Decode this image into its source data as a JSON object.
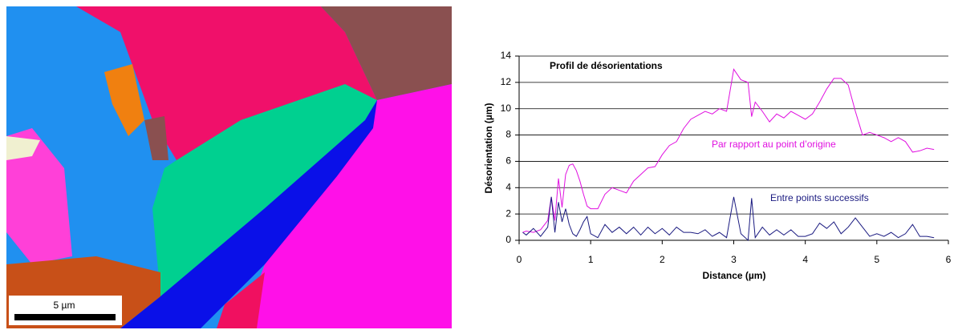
{
  "image": {
    "scale_bar": "5 µm"
  },
  "chart_data": {
    "type": "line",
    "title": "Profil de désorientations",
    "x_label": "Distance (µm)",
    "y_label": "Désorientation (µm)",
    "x": [
      0.05,
      0.1,
      0.2,
      0.3,
      0.4,
      0.45,
      0.5,
      0.55,
      0.6,
      0.65,
      0.7,
      0.75,
      0.8,
      0.85,
      0.9,
      0.95,
      1.0,
      1.1,
      1.2,
      1.3,
      1.4,
      1.5,
      1.6,
      1.7,
      1.8,
      1.9,
      2.0,
      2.1,
      2.2,
      2.3,
      2.4,
      2.5,
      2.6,
      2.7,
      2.8,
      2.9,
      3.0,
      3.1,
      3.2,
      3.25,
      3.3,
      3.4,
      3.5,
      3.6,
      3.7,
      3.8,
      3.9,
      4.0,
      4.1,
      4.2,
      4.3,
      4.4,
      4.5,
      4.6,
      4.7,
      4.8,
      4.9,
      5.0,
      5.1,
      5.2,
      5.3,
      5.4,
      5.5,
      5.6,
      5.7,
      5.8
    ],
    "series": [
      {
        "name": "Par rapport au point d’origine",
        "color": "#e010e0",
        "values": [
          0.6,
          0.7,
          0.6,
          0.8,
          1.5,
          3.3,
          1.5,
          4.7,
          2.5,
          5.0,
          5.7,
          5.8,
          5.3,
          4.5,
          3.5,
          2.6,
          2.4,
          2.4,
          3.5,
          4.0,
          3.8,
          3.6,
          4.5,
          5.0,
          5.5,
          5.6,
          6.5,
          7.2,
          7.5,
          8.5,
          9.2,
          9.5,
          9.8,
          9.6,
          10.0,
          9.8,
          13.0,
          12.2,
          12.0,
          9.4,
          10.5,
          9.8,
          9.0,
          9.6,
          9.3,
          9.8,
          9.5,
          9.2,
          9.6,
          10.5,
          11.5,
          12.3,
          12.3,
          11.8,
          9.8,
          8.0,
          8.2,
          8.0,
          7.8,
          7.5,
          7.8,
          7.5,
          6.7,
          6.8,
          7.0,
          6.9
        ]
      },
      {
        "name": "Entre points successifs",
        "color": "#1a1a80",
        "values": [
          0.6,
          0.4,
          0.9,
          0.3,
          1.0,
          3.3,
          0.6,
          2.9,
          1.4,
          2.4,
          1.2,
          0.5,
          0.3,
          0.8,
          1.4,
          1.8,
          0.5,
          0.2,
          1.2,
          0.6,
          1.0,
          0.5,
          1.0,
          0.4,
          1.0,
          0.5,
          0.9,
          0.4,
          1.0,
          0.6,
          0.6,
          0.5,
          0.8,
          0.3,
          0.6,
          0.2,
          3.3,
          0.5,
          0.0,
          3.2,
          0.2,
          1.0,
          0.4,
          0.8,
          0.4,
          0.8,
          0.3,
          0.3,
          0.5,
          1.3,
          0.9,
          1.4,
          0.5,
          1.0,
          1.7,
          1.0,
          0.3,
          0.5,
          0.3,
          0.6,
          0.2,
          0.5,
          1.2,
          0.3,
          0.3,
          0.2
        ]
      }
    ],
    "xlim": [
      0,
      6
    ],
    "xticks": [
      0,
      1,
      2,
      3,
      4,
      5,
      6
    ],
    "ylim": [
      0,
      14
    ],
    "yticks": [
      0,
      2,
      4,
      6,
      8,
      10,
      12,
      14
    ],
    "grid": true
  }
}
